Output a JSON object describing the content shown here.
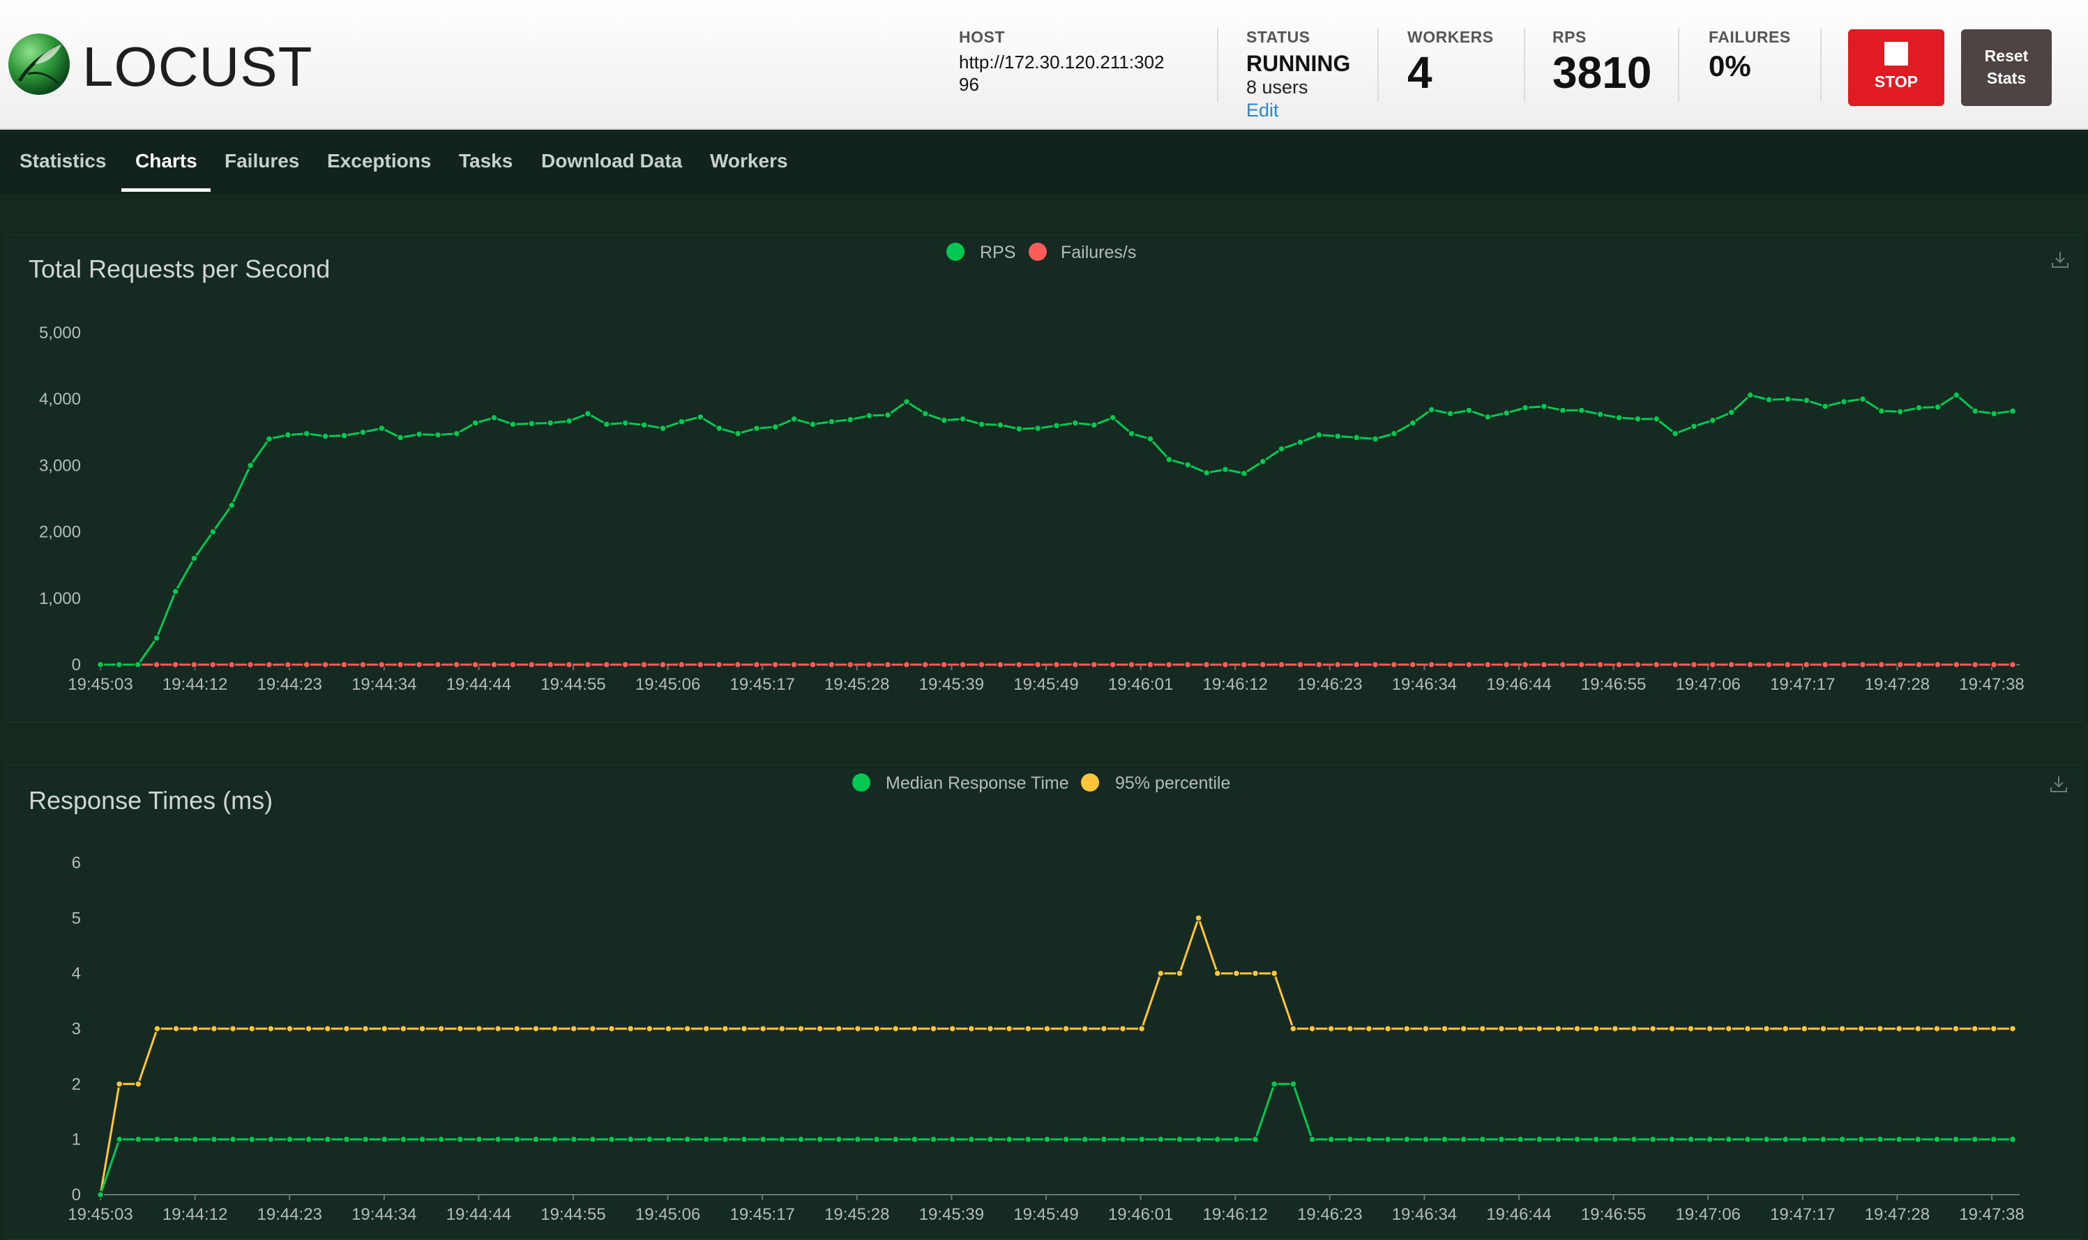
{
  "app": {
    "name": "LOCUST"
  },
  "header": {
    "host_label": "HOST",
    "host_line1": "http://172.30.120.211:302",
    "host_line2": "96",
    "status_label": "STATUS",
    "status_value": "RUNNING",
    "users": "8 users",
    "edit_label": "Edit",
    "workers_label": "WORKERS",
    "workers_value": "4",
    "rps_label": "RPS",
    "rps_value": "3810",
    "failures_label": "FAILURES",
    "failures_value": "0%",
    "stop_label": "STOP",
    "reset_label_1": "Reset",
    "reset_label_2": "Stats"
  },
  "nav": {
    "tabs": [
      "Statistics",
      "Charts",
      "Failures",
      "Exceptions",
      "Tasks",
      "Download Data",
      "Workers"
    ],
    "active": "Charts"
  },
  "colors": {
    "green": "#00c853",
    "red": "#ff5b5b",
    "yellow": "#ffc53d",
    "stop": "#e11b22"
  },
  "icons": {
    "download": "download-icon",
    "logo": "locust-logo-icon"
  },
  "chart_data": [
    {
      "type": "line",
      "title": "Total Requests per Second",
      "ylim": [
        0,
        5000
      ],
      "yticks": [
        "0",
        "1,000",
        "2,000",
        "3,000",
        "4,000",
        "5,000"
      ],
      "x_tick_labels": [
        "19:45:03",
        "19:44:12",
        "19:44:23",
        "19:44:34",
        "19:44:44",
        "19:44:55",
        "19:45:06",
        "19:45:17",
        "19:45:28",
        "19:45:39",
        "19:45:49",
        "19:46:01",
        "19:46:12",
        "19:46:23",
        "19:46:34",
        "19:46:44",
        "19:46:55",
        "19:47:06",
        "19:47:17",
        "19:47:28",
        "19:47:38"
      ],
      "legend_position": "top-center",
      "series": [
        {
          "name": "RPS",
          "color": "#00c853",
          "values": [
            0,
            0,
            0,
            400,
            1100,
            1600,
            2000,
            2400,
            3000,
            3400,
            3460,
            3480,
            3440,
            3450,
            3500,
            3560,
            3420,
            3470,
            3460,
            3480,
            3640,
            3720,
            3620,
            3630,
            3640,
            3670,
            3780,
            3620,
            3640,
            3610,
            3560,
            3660,
            3730,
            3560,
            3480,
            3560,
            3580,
            3700,
            3620,
            3660,
            3690,
            3750,
            3760,
            3960,
            3780,
            3680,
            3700,
            3620,
            3610,
            3550,
            3560,
            3600,
            3640,
            3610,
            3720,
            3480,
            3400,
            3090,
            3010,
            2890,
            2940,
            2880,
            3060,
            3250,
            3350,
            3460,
            3440,
            3420,
            3400,
            3480,
            3640,
            3840,
            3780,
            3830,
            3730,
            3790,
            3870,
            3890,
            3830,
            3830,
            3770,
            3720,
            3700,
            3700,
            3480,
            3590,
            3680,
            3800,
            4060,
            3990,
            4000,
            3980,
            3890,
            3960,
            4000,
            3820,
            3810,
            3870,
            3880,
            4060,
            3820,
            3780,
            3820
          ]
        },
        {
          "name": "Failures/s",
          "color": "#ff5b5b",
          "values": [
            0,
            0,
            0,
            0,
            0,
            0,
            0,
            0,
            0,
            0,
            0,
            0,
            0,
            0,
            0,
            0,
            0,
            0,
            0,
            0,
            0,
            0,
            0,
            0,
            0,
            0,
            0,
            0,
            0,
            0,
            0,
            0,
            0,
            0,
            0,
            0,
            0,
            0,
            0,
            0,
            0,
            0,
            0,
            0,
            0,
            0,
            0,
            0,
            0,
            0,
            0,
            0,
            0,
            0,
            0,
            0,
            0,
            0,
            0,
            0,
            0,
            0,
            0,
            0,
            0,
            0,
            0,
            0,
            0,
            0,
            0,
            0,
            0,
            0,
            0,
            0,
            0,
            0,
            0,
            0,
            0,
            0,
            0,
            0,
            0,
            0,
            0,
            0,
            0,
            0,
            0,
            0,
            0,
            0,
            0,
            0,
            0,
            0,
            0,
            0,
            0,
            0,
            0
          ]
        }
      ]
    },
    {
      "type": "line",
      "title": "Response Times (ms)",
      "ylim": [
        0,
        6
      ],
      "yticks": [
        "0",
        "1",
        "2",
        "3",
        "4",
        "5",
        "6"
      ],
      "x_tick_labels": [
        "19:45:03",
        "19:44:12",
        "19:44:23",
        "19:44:34",
        "19:44:44",
        "19:44:55",
        "19:45:06",
        "19:45:17",
        "19:45:28",
        "19:45:39",
        "19:45:49",
        "19:46:01",
        "19:46:12",
        "19:46:23",
        "19:46:34",
        "19:46:44",
        "19:46:55",
        "19:47:06",
        "19:47:17",
        "19:47:28",
        "19:47:38"
      ],
      "legend_position": "top-center",
      "series": [
        {
          "name": "Median Response Time",
          "color": "#00c853",
          "values": [
            0,
            1,
            1,
            1,
            1,
            1,
            1,
            1,
            1,
            1,
            1,
            1,
            1,
            1,
            1,
            1,
            1,
            1,
            1,
            1,
            1,
            1,
            1,
            1,
            1,
            1,
            1,
            1,
            1,
            1,
            1,
            1,
            1,
            1,
            1,
            1,
            1,
            1,
            1,
            1,
            1,
            1,
            1,
            1,
            1,
            1,
            1,
            1,
            1,
            1,
            1,
            1,
            1,
            1,
            1,
            1,
            1,
            1,
            1,
            1,
            1,
            1,
            2,
            2,
            1,
            1,
            1,
            1,
            1,
            1,
            1,
            1,
            1,
            1,
            1,
            1,
            1,
            1,
            1,
            1,
            1,
            1,
            1,
            1,
            1,
            1,
            1,
            1,
            1,
            1,
            1,
            1,
            1,
            1,
            1,
            1,
            1,
            1,
            1,
            1,
            1,
            1
          ]
        },
        {
          "name": "95% percentile",
          "color": "#ffc53d",
          "values": [
            0,
            2,
            2,
            3,
            3,
            3,
            3,
            3,
            3,
            3,
            3,
            3,
            3,
            3,
            3,
            3,
            3,
            3,
            3,
            3,
            3,
            3,
            3,
            3,
            3,
            3,
            3,
            3,
            3,
            3,
            3,
            3,
            3,
            3,
            3,
            3,
            3,
            3,
            3,
            3,
            3,
            3,
            3,
            3,
            3,
            3,
            3,
            3,
            3,
            3,
            3,
            3,
            3,
            3,
            3,
            3,
            4,
            4,
            5,
            4,
            4,
            4,
            4,
            3,
            3,
            3,
            3,
            3,
            3,
            3,
            3,
            3,
            3,
            3,
            3,
            3,
            3,
            3,
            3,
            3,
            3,
            3,
            3,
            3,
            3,
            3,
            3,
            3,
            3,
            3,
            3,
            3,
            3,
            3,
            3,
            3,
            3,
            3,
            3,
            3,
            3,
            3
          ]
        }
      ]
    }
  ]
}
